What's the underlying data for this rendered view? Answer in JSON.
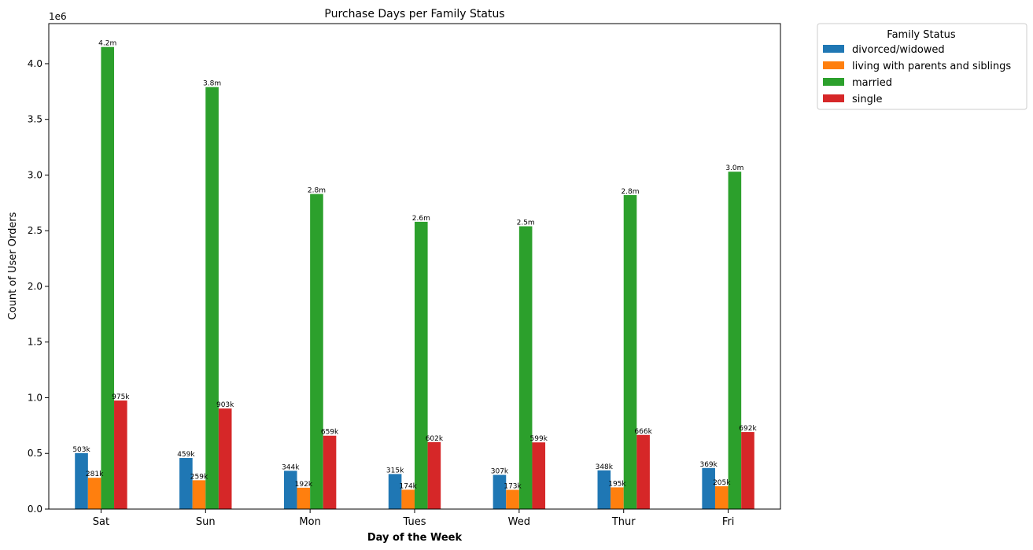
{
  "chart_data": {
    "type": "bar",
    "title": "Purchase Days per Family Status",
    "xlabel": "Day of the Week",
    "ylabel": "Count of User Orders",
    "y_offset_label": "1e6",
    "ylim": [
      0,
      4360000
    ],
    "yticks": [
      0,
      500000,
      1000000,
      1500000,
      2000000,
      2500000,
      3000000,
      3500000,
      4000000
    ],
    "ytick_labels": [
      "0.0",
      "0.5",
      "1.0",
      "1.5",
      "2.0",
      "2.5",
      "3.0",
      "3.5",
      "4.0"
    ],
    "categories": [
      "Sat",
      "Sun",
      "Mon",
      "Tues",
      "Wed",
      "Thur",
      "Fri"
    ],
    "legend_title": "Family Status",
    "legend_position": "outside upper right",
    "grid": false,
    "series": [
      {
        "name": "divorced/widowed",
        "color": "#1f77b4",
        "values": [
          503000,
          459000,
          344000,
          315000,
          307000,
          348000,
          369000
        ],
        "labels": [
          "503k",
          "459k",
          "344k",
          "315k",
          "307k",
          "348k",
          "369k"
        ]
      },
      {
        "name": "living with parents and siblings",
        "color": "#ff7f0e",
        "values": [
          281000,
          259000,
          192000,
          174000,
          173000,
          195000,
          205000
        ],
        "labels": [
          "281k",
          "259k",
          "192k",
          "174k",
          "173k",
          "195k",
          "205k"
        ]
      },
      {
        "name": "married",
        "color": "#2ca02c",
        "values": [
          4150000,
          3790000,
          2830000,
          2580000,
          2540000,
          2820000,
          3030000
        ],
        "labels": [
          "4.2m",
          "3.8m",
          "2.8m",
          "2.6m",
          "2.5m",
          "2.8m",
          "3.0m"
        ]
      },
      {
        "name": "single",
        "color": "#d62728",
        "values": [
          975000,
          903000,
          659000,
          602000,
          599000,
          666000,
          692000
        ],
        "labels": [
          "975k",
          "903k",
          "659k",
          "602k",
          "599k",
          "666k",
          "692k"
        ]
      }
    ]
  }
}
